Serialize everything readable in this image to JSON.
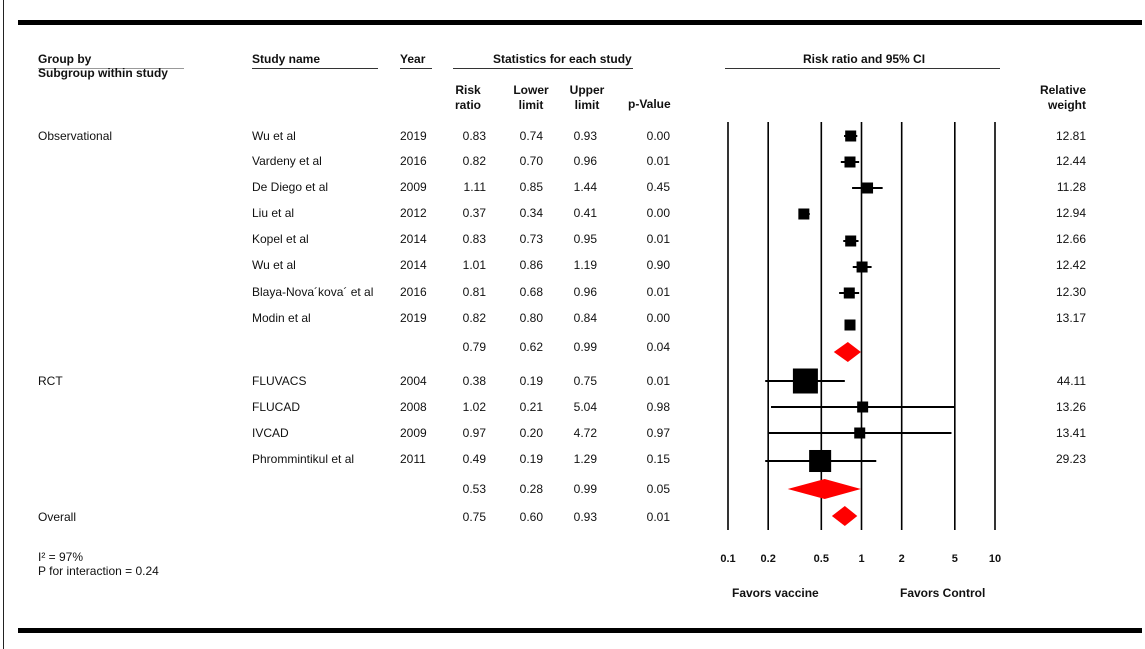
{
  "headers": {
    "group_by": "Group by",
    "subgroup": "Subgroup within study",
    "study_name": "Study name",
    "year": "Year",
    "stats": "Statistics for each study",
    "plot_title": "Risk ratio and 95% CI",
    "rr1": "Risk",
    "rr2": "ratio",
    "ll1": "Lower",
    "ll2": "limit",
    "ul1": "Upper",
    "ul2": "limit",
    "pv": "p-Value",
    "rw1": "Relative",
    "rw2": "weight"
  },
  "groups": {
    "obs": "Observational",
    "rct": "RCT",
    "overall": "Overall"
  },
  "rows": [
    {
      "study": "Wu et al",
      "year": "2019",
      "rr": "0.83",
      "ll": "0.74",
      "ul": "0.93",
      "p": "0.00",
      "w": "12.81"
    },
    {
      "study": "Vardeny et al",
      "year": "2016",
      "rr": "0.82",
      "ll": "0.70",
      "ul": "0.96",
      "p": "0.01",
      "w": "12.44"
    },
    {
      "study": "De Diego et al",
      "year": "2009",
      "rr": "1.11",
      "ll": "0.85",
      "ul": "1.44",
      "p": "0.45",
      "w": "11.28"
    },
    {
      "study": "Liu et al",
      "year": "2012",
      "rr": "0.37",
      "ll": "0.34",
      "ul": "0.41",
      "p": "0.00",
      "w": "12.94"
    },
    {
      "study": "Kopel et al",
      "year": "2014",
      "rr": "0.83",
      "ll": "0.73",
      "ul": "0.95",
      "p": "0.01",
      "w": "12.66"
    },
    {
      "study": "Wu et al",
      "year": "2014",
      "rr": "1.01",
      "ll": "0.86",
      "ul": "1.19",
      "p": "0.90",
      "w": "12.42"
    },
    {
      "study": "Blaya-Nova´kova´ et al",
      "year": "2016",
      "rr": "0.81",
      "ll": "0.68",
      "ul": "0.96",
      "p": "0.01",
      "w": "12.30"
    },
    {
      "study": "Modin et al",
      "year": "2019",
      "rr": "0.82",
      "ll": "0.80",
      "ul": "0.84",
      "p": "0.00",
      "w": "13.17"
    },
    {
      "study": "",
      "year": "",
      "rr": "0.79",
      "ll": "0.62",
      "ul": "0.99",
      "p": "0.04",
      "w": ""
    },
    {
      "study": "FLUVACS",
      "year": "2004",
      "rr": "0.38",
      "ll": "0.19",
      "ul": "0.75",
      "p": "0.01",
      "w": "44.11"
    },
    {
      "study": "FLUCAD",
      "year": "2008",
      "rr": "1.02",
      "ll": "0.21",
      "ul": "5.04",
      "p": "0.98",
      "w": "13.26"
    },
    {
      "study": "IVCAD",
      "year": "2009",
      "rr": "0.97",
      "ll": "0.20",
      "ul": "4.72",
      "p": "0.97",
      "w": "13.41"
    },
    {
      "study": "Phrommintikul et al",
      "year": "2011",
      "rr": "0.49",
      "ll": "0.19",
      "ul": "1.29",
      "p": "0.15",
      "w": "29.23"
    },
    {
      "study": "",
      "year": "",
      "rr": "0.53",
      "ll": "0.28",
      "ul": "0.99",
      "p": "0.05",
      "w": ""
    },
    {
      "study": "",
      "year": "",
      "rr": "0.75",
      "ll": "0.60",
      "ul": "0.93",
      "p": "0.01",
      "w": ""
    }
  ],
  "footer": {
    "i2": "I² = 97%",
    "p_interaction": "P for interaction = 0.24",
    "favors_vaccine": "Favors vaccine",
    "favors_control": "Favors Control"
  },
  "chart_data": {
    "type": "forest",
    "title": "Risk ratio and 95% CI",
    "x_scale": "log",
    "x_ticks": [
      "0.1",
      "0.2",
      "0.5",
      "1",
      "2",
      "5",
      "10"
    ],
    "xlim": [
      0.1,
      10
    ],
    "studies": [
      {
        "label": "Wu et al 2019",
        "rr": 0.83,
        "ll": 0.74,
        "ul": 0.93,
        "weight": 12.81
      },
      {
        "label": "Vardeny et al 2016",
        "rr": 0.82,
        "ll": 0.7,
        "ul": 0.96,
        "weight": 12.44
      },
      {
        "label": "De Diego et al 2009",
        "rr": 1.11,
        "ll": 0.85,
        "ul": 1.44,
        "weight": 11.28
      },
      {
        "label": "Liu et al 2012",
        "rr": 0.37,
        "ll": 0.34,
        "ul": 0.41,
        "weight": 12.94
      },
      {
        "label": "Kopel et al 2014",
        "rr": 0.83,
        "ll": 0.73,
        "ul": 0.95,
        "weight": 12.66
      },
      {
        "label": "Wu et al 2014",
        "rr": 1.01,
        "ll": 0.86,
        "ul": 1.19,
        "weight": 12.42
      },
      {
        "label": "Blaya-Nova´kova´ et al 2016",
        "rr": 0.81,
        "ll": 0.68,
        "ul": 0.96,
        "weight": 12.3
      },
      {
        "label": "Modin et al 2019",
        "rr": 0.82,
        "ll": 0.8,
        "ul": 0.84,
        "weight": 13.17
      },
      {
        "label": "Observational",
        "rr": 0.79,
        "ll": 0.62,
        "ul": 0.99,
        "summary": true
      },
      {
        "label": "FLUVACS 2004",
        "rr": 0.38,
        "ll": 0.19,
        "ul": 0.75,
        "weight": 44.11
      },
      {
        "label": "FLUCAD 2008",
        "rr": 1.02,
        "ll": 0.21,
        "ul": 5.04,
        "weight": 13.26
      },
      {
        "label": "IVCAD 2009",
        "rr": 0.97,
        "ll": 0.2,
        "ul": 4.72,
        "weight": 13.41
      },
      {
        "label": "Phrommintikul et al 2011",
        "rr": 0.49,
        "ll": 0.19,
        "ul": 1.29,
        "weight": 29.23
      },
      {
        "label": "RCT",
        "rr": 0.53,
        "ll": 0.28,
        "ul": 0.99,
        "summary": true
      },
      {
        "label": "Overall",
        "rr": 0.75,
        "ll": 0.6,
        "ul": 0.93,
        "summary": true
      }
    ],
    "colors": {
      "marker": "#000000",
      "summary": "#ff0000"
    }
  }
}
